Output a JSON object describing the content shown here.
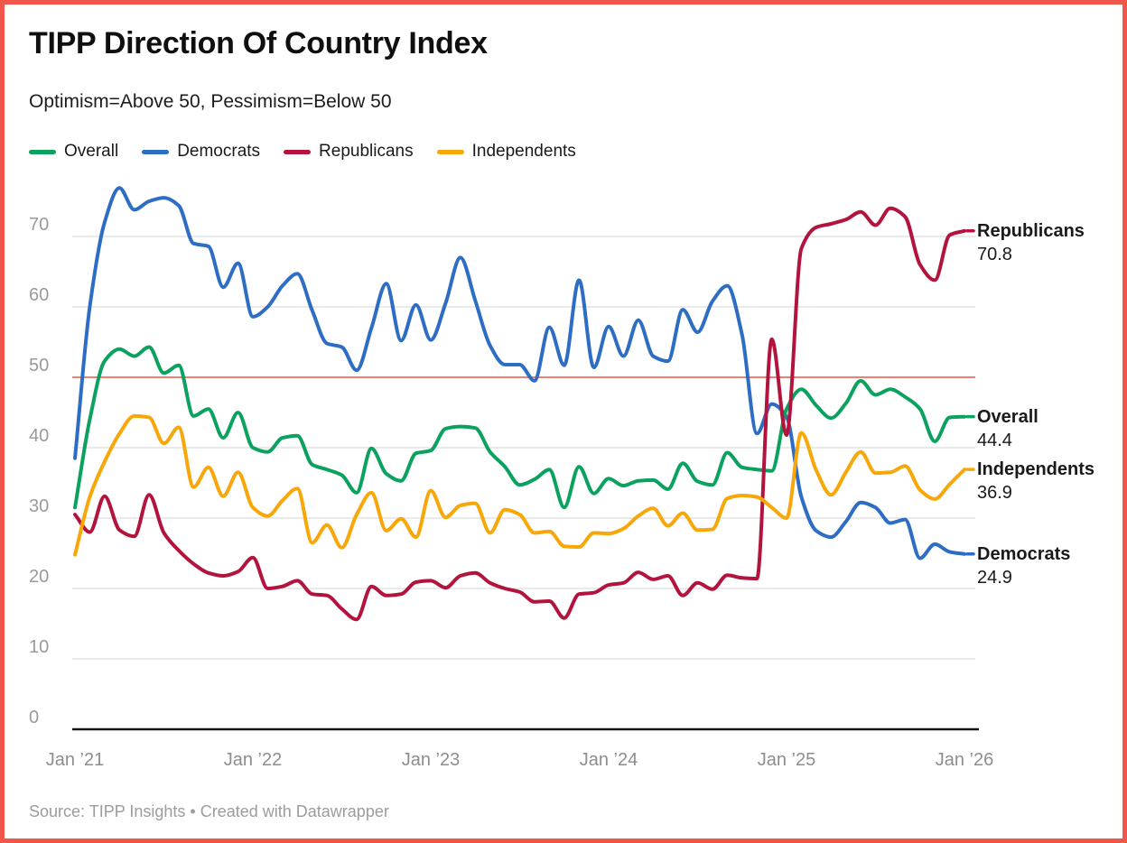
{
  "header": {
    "title": "TIPP Direction Of Country Index",
    "subtitle": "Optimism=Above 50, Pessimism=Below 50"
  },
  "source": {
    "text": "Source: TIPP Insights • Created with Datawrapper"
  },
  "chart_data": {
    "type": "line",
    "title": "TIPP Direction Of Country Index",
    "subtitle": "Optimism=Above 50, Pessimism=Below 50",
    "x_monthly_from": "Jan 2021",
    "x_tick_labels": [
      "Jan ’21",
      "Jan ’22",
      "Jan ’23",
      "Jan ’24",
      "Jan ’25",
      "Jan ’26"
    ],
    "y_ticks": [
      0,
      10,
      20,
      30,
      40,
      50,
      60,
      70
    ],
    "ylim": [
      0,
      78.5
    ],
    "grid": true,
    "legend_position": "top",
    "reference_line": {
      "value": 50,
      "color": "#ea8173"
    },
    "series": [
      {
        "name": "Overall",
        "color": "#0ba15f",
        "end_label": "44.4",
        "values": [
          31.5,
          44.0,
          52.3,
          54.0,
          53.0,
          54.3,
          50.6,
          51.7,
          44.5,
          45.5,
          41.4,
          45.0,
          40.0,
          39.4,
          41.4,
          41.7,
          37.6,
          36.9,
          36.1,
          33.6,
          39.9,
          36.3,
          35.3,
          39.2,
          39.6,
          42.7,
          43.0,
          42.8,
          39.4,
          37.3,
          34.7,
          35.5,
          36.9,
          31.5,
          37.3,
          33.5,
          35.6,
          34.6,
          35.3,
          35.4,
          34.1,
          37.8,
          35.2,
          34.7,
          39.3,
          37.2,
          36.9,
          36.7,
          45.5,
          48.3,
          46.0,
          44.2,
          46.3,
          49.5,
          47.5,
          48.3,
          47.2,
          45.5,
          40.9,
          44.3,
          44.4
        ]
      },
      {
        "name": "Democrats",
        "color": "#2d6dc4",
        "end_label": "24.9",
        "values": [
          38.5,
          60.0,
          72.0,
          76.9,
          73.8,
          75.0,
          75.5,
          74.4,
          69.0,
          68.6,
          62.8,
          66.2,
          58.6,
          60.0,
          63.0,
          64.7,
          59.5,
          54.8,
          54.3,
          51.0,
          57.0,
          63.3,
          55.2,
          60.3,
          55.3,
          60.5,
          67.0,
          60.9,
          54.5,
          51.8,
          51.8,
          49.5,
          57.1,
          51.7,
          63.8,
          51.4,
          57.2,
          53.0,
          58.1,
          53.0,
          52.3,
          59.6,
          56.4,
          60.8,
          63.0,
          56.0,
          42.0,
          46.2,
          44.4,
          33.0,
          28.2,
          27.3,
          29.5,
          32.2,
          31.5,
          29.3,
          29.8,
          24.3,
          26.3,
          25.2,
          24.9
        ]
      },
      {
        "name": "Republicans",
        "color": "#b2143e",
        "end_label": "70.8",
        "values": [
          30.5,
          28.0,
          33.1,
          28.3,
          27.4,
          33.3,
          27.9,
          25.4,
          23.5,
          22.2,
          21.8,
          22.4,
          24.4,
          20.0,
          20.3,
          21.1,
          19.2,
          19.0,
          17.1,
          15.6,
          20.3,
          19.0,
          19.2,
          20.9,
          21.1,
          20.1,
          21.8,
          22.2,
          20.8,
          20.0,
          19.5,
          18.1,
          18.2,
          15.8,
          19.2,
          19.4,
          20.5,
          20.8,
          22.3,
          21.3,
          21.8,
          19.0,
          20.8,
          19.9,
          21.9,
          21.5,
          21.4,
          55.4,
          41.8,
          68.3,
          71.3,
          71.8,
          72.4,
          73.5,
          71.6,
          74.0,
          72.8,
          66.0,
          63.8,
          70.2,
          70.8
        ]
      },
      {
        "name": "Independents",
        "color": "#f7a708",
        "end_label": "36.9",
        "values": [
          24.8,
          33.0,
          38.0,
          42.0,
          44.5,
          44.3,
          40.6,
          42.9,
          34.4,
          37.2,
          33.1,
          36.5,
          31.5,
          30.3,
          32.5,
          34.2,
          26.5,
          29.0,
          25.8,
          30.5,
          33.6,
          28.2,
          29.9,
          27.3,
          33.9,
          30.1,
          31.8,
          32.1,
          27.9,
          31.2,
          30.5,
          27.9,
          28.1,
          26.0,
          25.9,
          27.9,
          27.8,
          28.5,
          30.3,
          31.4,
          28.9,
          30.7,
          28.3,
          28.4,
          32.8,
          33.2,
          33.0,
          31.5,
          30.0,
          42.1,
          36.8,
          33.3,
          36.5,
          39.4,
          36.4,
          36.5,
          37.4,
          34.0,
          32.7,
          34.8,
          36.9
        ]
      }
    ]
  }
}
